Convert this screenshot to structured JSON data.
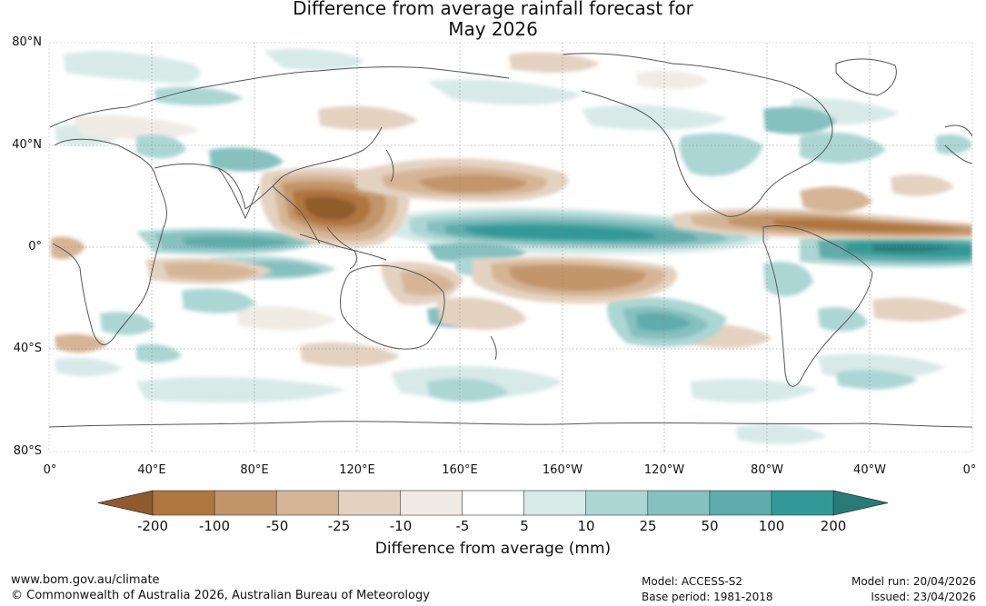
{
  "title": {
    "line1": "Difference from average rainfall forecast for",
    "line2": "May 2026"
  },
  "map": {
    "lat_labels": [
      "80°N",
      "40°N",
      "0°",
      "40°S",
      "80°S"
    ],
    "lon_labels": [
      "0°",
      "40°E",
      "80°E",
      "120°E",
      "160°E",
      "160°W",
      "120°W",
      "80°W",
      "40°W",
      "0°"
    ]
  },
  "colorbar": {
    "title": "Difference from average (mm)",
    "tick_labels": [
      "-200",
      "-100",
      "-50",
      "-25",
      "-10",
      "-5",
      "5",
      "10",
      "25",
      "50",
      "100",
      "200"
    ],
    "colors": [
      "#8f5b2c",
      "#b07640",
      "#c2956a",
      "#d5b596",
      "#e4d2c1",
      "#f1ebe6",
      "#ffffff",
      "#d7eae8",
      "#acd6d4",
      "#86c0bf",
      "#5eacab",
      "#339997",
      "#2a7a78"
    ]
  },
  "footer": {
    "url": "www.bom.gov.au/climate",
    "copyright": "© Commonwealth of Australia 2026, Australian Bureau of Meteorology",
    "model": "Model: ACCESS-S2",
    "base_period": "Base period: 1981-2018",
    "model_run": "Model run: 20/04/2026",
    "issued": "Issued: 23/04/2026"
  }
}
